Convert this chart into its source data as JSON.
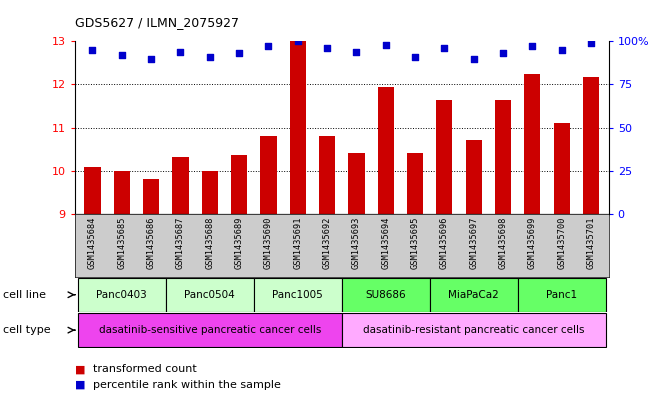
{
  "title": "GDS5627 / ILMN_2075927",
  "samples": [
    "GSM1435684",
    "GSM1435685",
    "GSM1435686",
    "GSM1435687",
    "GSM1435688",
    "GSM1435689",
    "GSM1435690",
    "GSM1435691",
    "GSM1435692",
    "GSM1435693",
    "GSM1435694",
    "GSM1435695",
    "GSM1435696",
    "GSM1435697",
    "GSM1435698",
    "GSM1435699",
    "GSM1435700",
    "GSM1435701"
  ],
  "bar_values": [
    10.08,
    10.0,
    9.82,
    10.32,
    10.0,
    10.38,
    10.82,
    13.0,
    10.82,
    10.42,
    11.95,
    10.42,
    11.65,
    10.72,
    11.65,
    12.25,
    11.1,
    12.18
  ],
  "dot_values": [
    95,
    92,
    90,
    94,
    91,
    93,
    97,
    100,
    96,
    94,
    98,
    91,
    96,
    90,
    93,
    97,
    95,
    99
  ],
  "bar_color": "#cc0000",
  "dot_color": "#0000cc",
  "ylim_left": [
    9,
    13
  ],
  "ylim_right": [
    0,
    100
  ],
  "yticks_left": [
    9,
    10,
    11,
    12,
    13
  ],
  "yticks_right": [
    0,
    25,
    50,
    75,
    100
  ],
  "ytick_labels_right": [
    "0",
    "25",
    "50",
    "75",
    "100%"
  ],
  "cell_line_groups": [
    {
      "label": "Panc0403",
      "start": 0,
      "end": 2,
      "color": "#ccffcc"
    },
    {
      "label": "Panc0504",
      "start": 3,
      "end": 5,
      "color": "#ccffcc"
    },
    {
      "label": "Panc1005",
      "start": 6,
      "end": 8,
      "color": "#ccffcc"
    },
    {
      "label": "SU8686",
      "start": 9,
      "end": 11,
      "color": "#66ff66"
    },
    {
      "label": "MiaPaCa2",
      "start": 12,
      "end": 14,
      "color": "#66ff66"
    },
    {
      "label": "Panc1",
      "start": 15,
      "end": 17,
      "color": "#66ff66"
    }
  ],
  "cell_type_groups": [
    {
      "label": "dasatinib-sensitive pancreatic cancer cells",
      "start": 0,
      "end": 8,
      "color": "#ee44ee"
    },
    {
      "label": "dasatinib-resistant pancreatic cancer cells",
      "start": 9,
      "end": 17,
      "color": "#ffaaff"
    }
  ],
  "legend_items": [
    {
      "color": "#cc0000",
      "label": "transformed count"
    },
    {
      "color": "#0000cc",
      "label": "percentile rank within the sample"
    }
  ],
  "bar_width": 0.55,
  "xtick_bg": "#cccccc",
  "fig_width": 6.51,
  "fig_height": 3.93,
  "dpi": 100
}
